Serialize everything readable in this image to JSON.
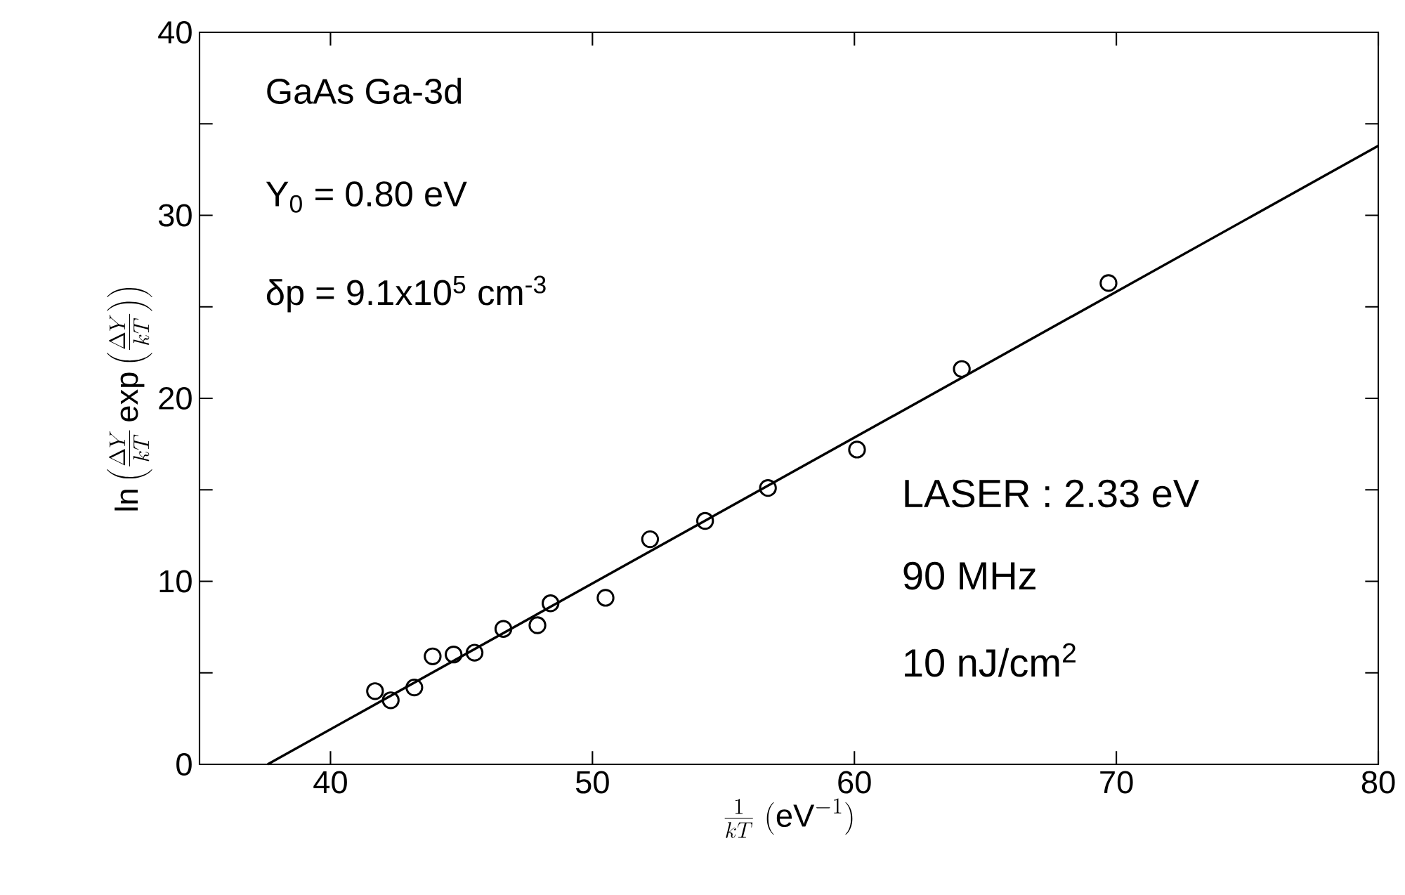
{
  "chart_data": {
    "type": "scatter",
    "xlabel": "\\frac{1}{kT}\\ (\\mathrm{eV}^{-1})",
    "ylabel": "\\ln\\left(\\frac{\\Delta Y}{kT}\\exp\\left(\\frac{\\Delta Y}{kT}\\right)\\right)",
    "series": [
      {
        "color": "#000000",
        "marker": "circle",
        "x": [
          41.7,
          42.3,
          43.2,
          43.9,
          44.7,
          45.5,
          46.6,
          47.9,
          48.4,
          50.5,
          52.2,
          54.3,
          56.7,
          60.1,
          64.1,
          69.7
        ],
        "values": [
          4.0,
          3.5,
          4.2,
          5.9,
          6.0,
          6.1,
          7.4,
          7.6,
          8.8,
          9.1,
          12.3,
          13.3,
          15.1,
          17.2,
          21.6,
          26.3
        ]
      },
      {
        "type": "line",
        "color": "#000000",
        "line_style": "solid",
        "x": [
          37.6,
          80
        ],
        "values": [
          0,
          33.8
        ]
      }
    ],
    "xlim": [
      35,
      80
    ],
    "ylim": [
      0,
      40
    ],
    "xticks": [
      40,
      50,
      60,
      70,
      80
    ],
    "yticks": [
      0,
      {
        "value": 5,
        "label": null
      },
      10,
      {
        "value": 15,
        "label": null
      },
      20,
      {
        "value": 25,
        "label": null
      },
      30,
      {
        "value": 35,
        "label": null
      },
      40
    ],
    "grid": false,
    "annotations": [
      "GaAs  Ga-3d",
      "Y$_{0}$  = 0.80 eV",
      "δp  = 9.1x10$^{5}$ cm$^{-3}$",
      "LASER : 2.33 eV",
      "90 MHz",
      "10 nJ/cm$^{2}$"
    ]
  }
}
